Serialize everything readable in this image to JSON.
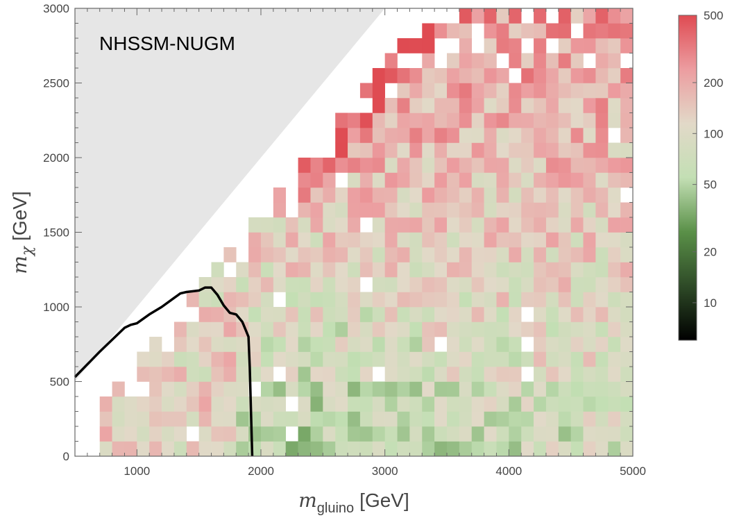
{
  "chart_data": {
    "type": "heatmap",
    "title": "NHSSM-NUGM",
    "xlabel": {
      "symbol": "m",
      "subscript": "gluino",
      "unit": "[GeV]"
    },
    "ylabel": {
      "symbol": "m",
      "subscript": "χ",
      "unit": "[GeV]"
    },
    "xlim": [
      500,
      5000
    ],
    "ylim": [
      0,
      3000
    ],
    "xticks": [
      "1000",
      "2000",
      "3000",
      "4000",
      "5000"
    ],
    "yticks": [
      "0",
      "500",
      "1000",
      "1500",
      "2000",
      "2500",
      "3000"
    ],
    "bin_width_x": 100,
    "bin_height_y": 100,
    "colorbar": {
      "scale": "log",
      "range": [
        6,
        500
      ],
      "ticks": [
        "10",
        "20",
        "50",
        "100",
        "200",
        "500"
      ],
      "colors": [
        "#000000",
        "#2e4a27",
        "#5a9048",
        "#c3dfb4",
        "#e2d9c8",
        "#ec9da0",
        "#df4b52"
      ]
    },
    "excluded_region": "m_chi > m_gluino",
    "excluded_color": "#e6e6e6",
    "contour": {
      "color": "#000000",
      "x": [
        500,
        700,
        900,
        950,
        1000,
        1100,
        1200,
        1300,
        1350,
        1400,
        1500,
        1550,
        1600,
        1650,
        1700,
        1750,
        1800,
        1850,
        1870,
        1900,
        1910,
        1920,
        1930
      ],
      "y": [
        530,
        700,
        860,
        880,
        890,
        950,
        1000,
        1060,
        1090,
        1100,
        1110,
        1130,
        1130,
        1080,
        1010,
        960,
        950,
        900,
        860,
        800,
        600,
        300,
        0
      ]
    }
  }
}
